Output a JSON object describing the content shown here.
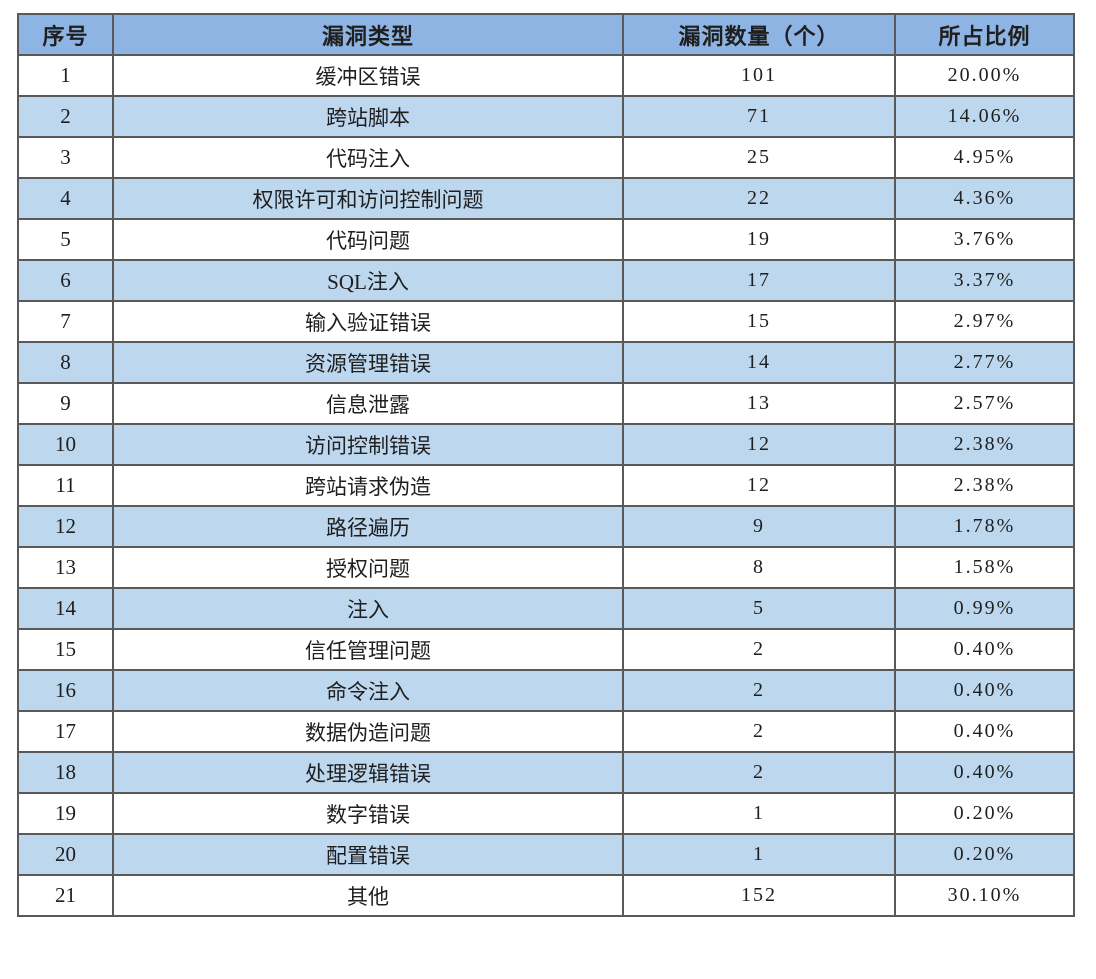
{
  "table": {
    "columns": [
      "序号",
      "漏洞类型",
      "漏洞数量（个）",
      "所占比例"
    ],
    "rows": [
      [
        "1",
        "缓冲区错误",
        "101",
        "20.00%"
      ],
      [
        "2",
        "跨站脚本",
        "71",
        "14.06%"
      ],
      [
        "3",
        "代码注入",
        "25",
        "4.95%"
      ],
      [
        "4",
        "权限许可和访问控制问题",
        "22",
        "4.36%"
      ],
      [
        "5",
        "代码问题",
        "19",
        "3.76%"
      ],
      [
        "6",
        "SQL注入",
        "17",
        "3.37%"
      ],
      [
        "7",
        "输入验证错误",
        "15",
        "2.97%"
      ],
      [
        "8",
        "资源管理错误",
        "14",
        "2.77%"
      ],
      [
        "9",
        "信息泄露",
        "13",
        "2.57%"
      ],
      [
        "10",
        "访问控制错误",
        "12",
        "2.38%"
      ],
      [
        "11",
        "跨站请求伪造",
        "12",
        "2.38%"
      ],
      [
        "12",
        "路径遍历",
        "9",
        "1.78%"
      ],
      [
        "13",
        "授权问题",
        "8",
        "1.58%"
      ],
      [
        "14",
        "注入",
        "5",
        "0.99%"
      ],
      [
        "15",
        "信任管理问题",
        "2",
        "0.40%"
      ],
      [
        "16",
        "命令注入",
        "2",
        "0.40%"
      ],
      [
        "17",
        "数据伪造问题",
        "2",
        "0.40%"
      ],
      [
        "18",
        "处理逻辑错误",
        "2",
        "0.40%"
      ],
      [
        "19",
        "数字错误",
        "1",
        "0.20%"
      ],
      [
        "20",
        "配置错误",
        "1",
        "0.20%"
      ],
      [
        "21",
        "其他",
        "152",
        "30.10%"
      ]
    ]
  },
  "colors": {
    "header_bg": "#8EB4E3",
    "band_bg": "#BDD7EE",
    "row_bg": "#FFFFFF",
    "inner_border": "#595959",
    "outer_border": "#262626",
    "text": "#1F1F1F"
  }
}
